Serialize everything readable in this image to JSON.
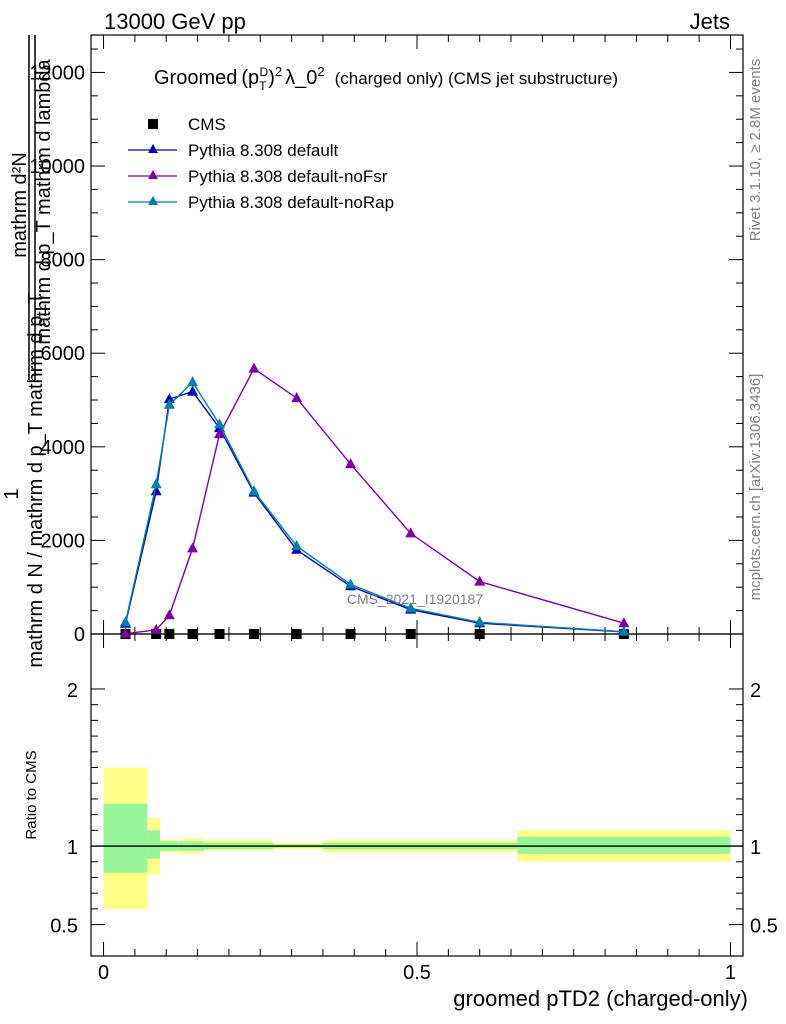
{
  "header": {
    "energy": "13000 GeV pp",
    "category": "Jets"
  },
  "title": {
    "prefix": "Groomed",
    "rest": "λ_0",
    "suffix": "(charged only) (CMS jet substructure)"
  },
  "side_labels": {
    "rivet": "Rivet 3.1.10, ≥ 2.8M events",
    "mcplots": "mcplots.cern.ch [arXiv:1306.3436]"
  },
  "watermark": "CMS_2021_I1920187",
  "main_ylabel": {
    "line1": "mathrm d²N",
    "line2": "mathrm d p_T mathrm d lambda",
    "one": "1",
    "line3": "mathrm d N / mathrm d p_T mathrm d p_T"
  },
  "ratio_ylabel": "Ratio to CMS",
  "xlabel": "groomed pTD2 (charged-only)",
  "colors": {
    "data": "#000000",
    "default": "#0000cc",
    "noFsr": "#7f00aa",
    "noRap": "#0080aa",
    "band_outer": "#ffff88",
    "band_inner": "#99f599"
  },
  "chart_data": {
    "type": "line",
    "x_range": [
      -0.02,
      1.02
    ],
    "x_ticks": [
      "0",
      "0.5",
      "1"
    ],
    "main": {
      "ylim": [
        0,
        12800
      ],
      "y_ticks": [
        "0",
        "2000",
        "4000",
        "6000",
        "8000",
        "10000",
        "12000"
      ],
      "series": [
        {
          "name": "CMS",
          "style": "data",
          "x": [
            0.035,
            0.084,
            0.105,
            0.142,
            0.185,
            0.24,
            0.308,
            0.394,
            0.49,
            0.6,
            0.83
          ],
          "y": [
            0,
            0,
            0,
            0,
            0,
            0,
            0,
            0,
            0,
            0,
            0
          ]
        },
        {
          "name": "Pythia 8.308 default",
          "style": "default",
          "x": [
            0.035,
            0.084,
            0.105,
            0.142,
            0.185,
            0.24,
            0.308,
            0.394,
            0.49,
            0.6,
            0.83
          ],
          "y": [
            220,
            3050,
            5020,
            5180,
            4400,
            3020,
            1800,
            1020,
            520,
            230,
            45
          ]
        },
        {
          "name": "Pythia 8.308 default-noFsr",
          "style": "noFsr",
          "x": [
            0.035,
            0.084,
            0.105,
            0.142,
            0.185,
            0.24,
            0.308,
            0.394,
            0.49,
            0.6,
            0.83
          ],
          "y": [
            5,
            90,
            400,
            1830,
            4270,
            5670,
            5040,
            3630,
            2150,
            1120,
            230
          ]
        },
        {
          "name": "Pythia 8.308 default-noRap",
          "style": "noRap",
          "x": [
            0.035,
            0.084,
            0.105,
            0.142,
            0.185,
            0.24,
            0.308,
            0.394,
            0.49,
            0.6,
            0.83
          ],
          "y": [
            250,
            3200,
            4900,
            5380,
            4480,
            3050,
            1880,
            1060,
            550,
            250,
            50
          ]
        }
      ]
    },
    "ratio": {
      "ylim": [
        0.3,
        2.35
      ],
      "y_ticks": [
        "0.5",
        "1",
        "2"
      ],
      "reference": 1.0,
      "bins": [
        {
          "lo": 0.0,
          "hi": 0.07,
          "outer": [
            0.6,
            1.5
          ],
          "inner": [
            0.83,
            1.27
          ]
        },
        {
          "lo": 0.07,
          "hi": 0.09,
          "outer": [
            0.82,
            1.18
          ],
          "inner": [
            0.92,
            1.1
          ]
        },
        {
          "lo": 0.09,
          "hi": 0.12,
          "outer": [
            0.96,
            1.04
          ],
          "inner": [
            0.97,
            1.03
          ]
        },
        {
          "lo": 0.12,
          "hi": 0.16,
          "outer": [
            0.95,
            1.05
          ],
          "inner": [
            0.97,
            1.03
          ]
        },
        {
          "lo": 0.16,
          "hi": 0.27,
          "outer": [
            0.97,
            1.04
          ],
          "inner": [
            0.98,
            1.02
          ]
        },
        {
          "lo": 0.27,
          "hi": 0.35,
          "outer": [
            0.98,
            1.02
          ],
          "inner": [
            0.99,
            1.01
          ]
        },
        {
          "lo": 0.35,
          "hi": 0.66,
          "outer": [
            0.96,
            1.04
          ],
          "inner": [
            0.98,
            1.02
          ]
        },
        {
          "lo": 0.66,
          "hi": 1.0,
          "outer": [
            0.9,
            1.1
          ],
          "inner": [
            0.95,
            1.06
          ]
        }
      ]
    }
  }
}
